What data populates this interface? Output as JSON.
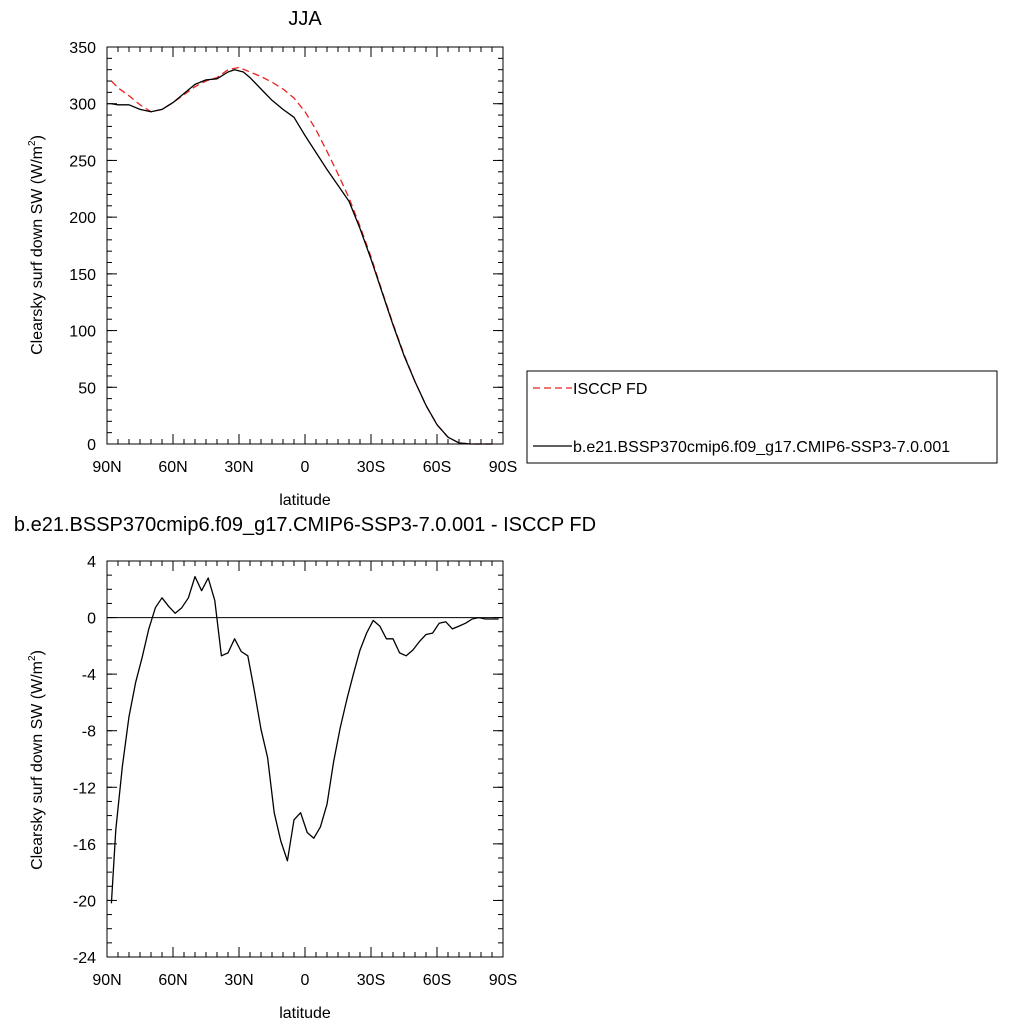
{
  "chart_data": [
    {
      "type": "line",
      "title": "JJA",
      "xlabel": "latitude",
      "ylabel": "Clearsky surf down SW (W/m",
      "ylabel_sup": "2",
      "ylabel_tail": ")",
      "xlim": [
        90,
        -90
      ],
      "ylim": [
        0,
        350
      ],
      "xticks": [
        {
          "v": 90,
          "label": "90N"
        },
        {
          "v": 60,
          "label": "60N"
        },
        {
          "v": 30,
          "label": "30N"
        },
        {
          "v": 0,
          "label": "0"
        },
        {
          "v": -30,
          "label": "30S"
        },
        {
          "v": -60,
          "label": "60S"
        },
        {
          "v": -90,
          "label": "90S"
        }
      ],
      "yticks": [
        0,
        50,
        100,
        150,
        200,
        250,
        300,
        350
      ],
      "legend_position": "right",
      "series": [
        {
          "name": "ISCCP FD",
          "color": "#e8231f",
          "dash": "dashed",
          "x": [
            88,
            85,
            80,
            75,
            70,
            65,
            60,
            55,
            50,
            45,
            40,
            35,
            30,
            25,
            20,
            15,
            10,
            5,
            0,
            -5,
            -10,
            -15,
            -20,
            -25,
            -30,
            -35,
            -40,
            -45,
            -50,
            -55,
            -60,
            -65,
            -70,
            -75,
            -80,
            -85
          ],
          "y": [
            320,
            314,
            307,
            299,
            293,
            295,
            301,
            308,
            315,
            320,
            323,
            330,
            332,
            328,
            324,
            319,
            313,
            305,
            293,
            277,
            258,
            238,
            217,
            192,
            165,
            135,
            106,
            79,
            55,
            34,
            17,
            6,
            1,
            0,
            0,
            0
          ]
        },
        {
          "name": "b.e21.BSSP370cmip6.f09_g17.CMIP6-SSP3-7.0.001",
          "color": "#000000",
          "dash": "solid",
          "x": [
            88,
            85,
            80,
            75,
            70,
            65,
            60,
            55,
            50,
            45,
            40,
            35,
            32,
            28,
            25,
            20,
            15,
            10,
            5,
            0,
            -5,
            -10,
            -15,
            -20,
            -25,
            -30,
            -35,
            -40,
            -45,
            -50,
            -55,
            -60,
            -65,
            -70,
            -75,
            -80,
            -85
          ],
          "y": [
            300,
            299,
            299,
            295,
            293,
            295,
            301,
            309,
            317,
            321,
            322,
            328,
            330,
            328,
            323,
            313,
            303,
            295,
            288,
            272,
            257,
            242,
            228,
            214,
            190,
            163,
            134,
            105,
            78,
            55,
            34,
            17,
            6,
            1,
            0,
            0,
            0
          ]
        }
      ]
    },
    {
      "type": "line",
      "title": "b.e21.BSSP370cmip6.f09_g17.CMIP6-SSP3-7.0.001 - ISCCP FD",
      "xlabel": "latitude",
      "ylabel": "Clearsky surf down SW (W/m",
      "ylabel_sup": "2",
      "ylabel_tail": ")",
      "xlim": [
        90,
        -90
      ],
      "ylim": [
        -24,
        4
      ],
      "xticks": [
        {
          "v": 90,
          "label": "90N"
        },
        {
          "v": 60,
          "label": "60N"
        },
        {
          "v": 30,
          "label": "30N"
        },
        {
          "v": 0,
          "label": "0"
        },
        {
          "v": -30,
          "label": "30S"
        },
        {
          "v": -60,
          "label": "60S"
        },
        {
          "v": -90,
          "label": "90S"
        }
      ],
      "yticks": [
        -24,
        -20,
        -16,
        -12,
        -8,
        -4,
        0,
        4
      ],
      "series": [
        {
          "color": "#000000",
          "dash": "solid",
          "x": [
            88,
            86,
            83,
            80,
            77,
            74,
            71,
            68,
            65,
            62,
            59,
            56,
            53,
            50,
            47,
            44,
            41,
            38,
            35,
            32,
            29,
            26,
            23,
            20,
            17,
            14,
            11,
            8,
            5,
            2,
            -1,
            -4,
            -7,
            -10,
            -13,
            -16,
            -19,
            -22,
            -25,
            -28,
            -31,
            -34,
            -37,
            -40,
            -43,
            -46,
            -49,
            -52,
            -55,
            -58,
            -61,
            -64,
            -67,
            -70,
            -73,
            -76,
            -79,
            -82,
            -85,
            -88
          ],
          "y": [
            -20.2,
            -15.0,
            -10.5,
            -7.0,
            -4.6,
            -2.8,
            -0.8,
            0.7,
            1.4,
            0.8,
            0.3,
            0.7,
            1.4,
            2.9,
            1.9,
            2.8,
            1.2,
            -2.7,
            -2.5,
            -1.5,
            -2.4,
            -2.7,
            -5.2,
            -7.9,
            -9.9,
            -13.8,
            -15.8,
            -17.2,
            -14.3,
            -13.8,
            -15.2,
            -15.6,
            -14.8,
            -13.2,
            -10.2,
            -7.8,
            -5.8,
            -4.0,
            -2.3,
            -1.1,
            -0.2,
            -0.6,
            -1.5,
            -1.5,
            -2.5,
            -2.7,
            -2.3,
            -1.7,
            -1.2,
            -1.1,
            -0.4,
            -0.3,
            -0.8,
            -0.6,
            -0.4,
            -0.1,
            0.0,
            -0.1,
            -0.1,
            -0.1
          ]
        }
      ]
    }
  ]
}
